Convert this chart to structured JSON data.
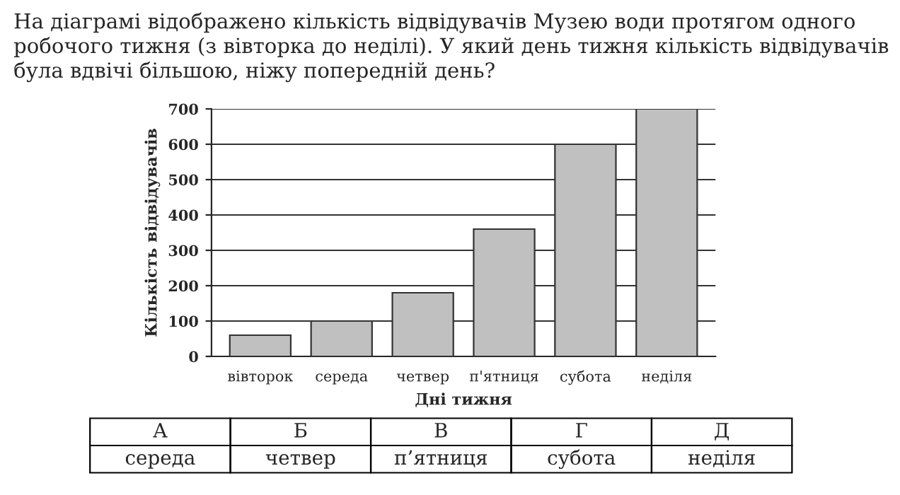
{
  "chart_data": {
    "type": "bar",
    "title": "На діаграмі відображено кількість відвідувачів Музею води протягом одного робочого тижня (з вівторка до неділі). У який день тижня кількість відвідувачів була вдвічі більшою, ніжу попередній день?",
    "xlabel": "Дні тижня",
    "ylabel": "Кількість відвідувачів",
    "categories": [
      "вівторок",
      "середа",
      "четвер",
      "п'ятниця",
      "субота",
      "неділя"
    ],
    "values": [
      60,
      100,
      180,
      360,
      600,
      700
    ],
    "color": "#c0c0c0",
    "ylim": [
      0,
      700
    ],
    "yticks": [
      0,
      100,
      200,
      300,
      400,
      500,
      600,
      700
    ],
    "grid": "y",
    "annotations": [
      "А",
      "Б",
      "В",
      "Г",
      "Д",
      "середа",
      "четвер",
      "п’ятниця",
      "субота",
      "неділя"
    ]
  }
}
